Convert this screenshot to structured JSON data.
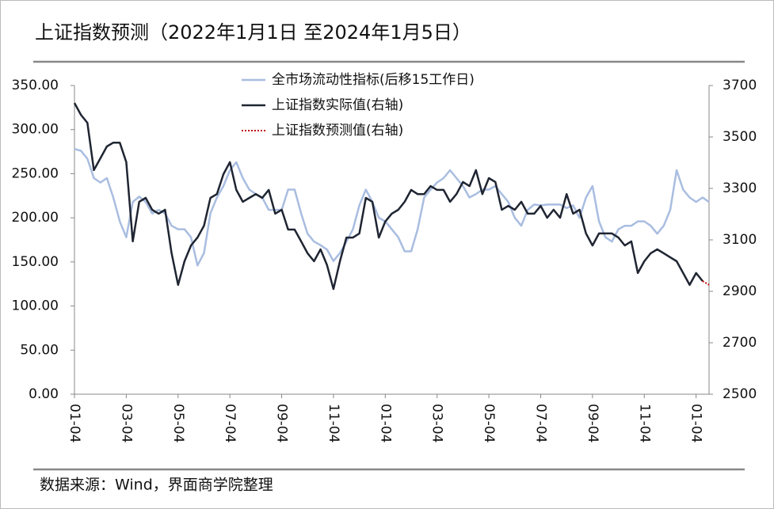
{
  "chart_data": {
    "type": "line",
    "title": "上证指数预测（2022年1月1日 至2024年1月5日）",
    "source": "数据来源：Wind，界面商学院整理",
    "categories": [
      "01-04",
      null,
      null,
      null,
      null,
      null,
      null,
      null,
      "03-04",
      null,
      null,
      null,
      null,
      null,
      null,
      null,
      "05-04",
      null,
      null,
      null,
      null,
      null,
      null,
      null,
      "07-04",
      null,
      null,
      null,
      null,
      null,
      null,
      null,
      "09-04",
      null,
      null,
      null,
      null,
      null,
      null,
      null,
      "11-04",
      null,
      null,
      null,
      null,
      null,
      null,
      null,
      "01-04",
      null,
      null,
      null,
      null,
      null,
      null,
      null,
      "03-04",
      null,
      null,
      null,
      null,
      null,
      null,
      null,
      "05-04",
      null,
      null,
      null,
      null,
      null,
      null,
      null,
      "07-04",
      null,
      null,
      null,
      null,
      null,
      null,
      null,
      "09-04",
      null,
      null,
      null,
      null,
      null,
      null,
      null,
      "11-04",
      null,
      null,
      null,
      null,
      null,
      null,
      null,
      "01-04",
      null,
      null
    ],
    "series": [
      {
        "name": "全市场流动性指标(后移15工作日)",
        "color": "#a9bde0",
        "axis": "y",
        "style": "solid",
        "values": [
          278,
          276,
          267,
          245,
          240,
          245,
          223,
          196,
          178,
          218,
          224,
          218,
          205,
          209,
          205,
          191,
          187,
          187,
          178,
          146,
          160,
          205,
          223,
          236,
          254,
          263,
          245,
          232,
          227,
          223,
          209,
          209,
          209,
          232,
          232,
          205,
          182,
          173,
          169,
          164,
          151,
          160,
          173,
          187,
          214,
          232,
          218,
          200,
          196,
          187,
          178,
          162,
          162,
          187,
          223,
          232,
          240,
          245,
          254,
          245,
          236,
          223,
          227,
          232,
          232,
          236,
          227,
          218,
          200,
          191,
          209,
          215,
          214,
          215,
          215,
          215,
          211,
          214,
          200,
          223,
          236,
          196,
          178,
          173,
          187,
          191,
          191,
          196,
          196,
          191,
          182,
          191,
          209,
          254,
          232,
          223,
          218,
          223,
          218
        ]
      },
      {
        "name": "上证指数实际值(右轴)",
        "color": "#1f2532",
        "axis": "y2",
        "style": "solid",
        "values": [
          3632,
          3586,
          3555,
          3371,
          3417,
          3463,
          3478,
          3478,
          3402,
          3094,
          3248,
          3263,
          3217,
          3202,
          3217,
          3048,
          2925,
          3017,
          3078,
          3109,
          3155,
          3263,
          3278,
          3355,
          3402,
          3294,
          3248,
          3263,
          3278,
          3263,
          3294,
          3202,
          3217,
          3140,
          3140,
          3094,
          3048,
          3017,
          3063,
          3002,
          2909,
          3017,
          3109,
          3109,
          3125,
          3263,
          3248,
          3109,
          3171,
          3202,
          3217,
          3248,
          3294,
          3278,
          3278,
          3309,
          3294,
          3294,
          3248,
          3278,
          3325,
          3309,
          3371,
          3278,
          3340,
          3325,
          3217,
          3232,
          3217,
          3248,
          3202,
          3202,
          3232,
          3186,
          3217,
          3186,
          3278,
          3202,
          3217,
          3125,
          3078,
          3125,
          3125,
          3125,
          3109,
          3078,
          3094,
          2971,
          3017,
          3048,
          3063,
          3048,
          3032,
          3017,
          2971,
          2925,
          2971,
          2940,
          null
        ]
      },
      {
        "name": "上证指数预测值(右轴)",
        "color": "#c00000",
        "axis": "y2",
        "style": "dotted",
        "values": [
          null,
          null,
          null,
          null,
          null,
          null,
          null,
          null,
          null,
          null,
          null,
          null,
          null,
          null,
          null,
          null,
          null,
          null,
          null,
          null,
          null,
          null,
          null,
          null,
          null,
          null,
          null,
          null,
          null,
          null,
          null,
          null,
          null,
          null,
          null,
          null,
          null,
          null,
          null,
          null,
          null,
          null,
          null,
          null,
          null,
          null,
          null,
          null,
          null,
          null,
          null,
          null,
          null,
          null,
          null,
          null,
          null,
          null,
          null,
          null,
          null,
          null,
          null,
          null,
          null,
          null,
          null,
          null,
          null,
          null,
          null,
          null,
          null,
          null,
          null,
          null,
          null,
          null,
          null,
          null,
          null,
          null,
          null,
          null,
          null,
          null,
          null,
          null,
          null,
          null,
          null,
          null,
          null,
          null,
          null,
          null,
          null,
          2940,
          2925
        ]
      }
    ],
    "ylim": [
      0,
      350
    ],
    "yticks": [
      {
        "value": 0,
        "label": "0.00"
      },
      {
        "value": 50,
        "label": "50.00"
      },
      {
        "value": 100,
        "label": "100.00"
      },
      {
        "value": 150,
        "label": "150.00"
      },
      {
        "value": 200,
        "label": "200.00"
      },
      {
        "value": 250,
        "label": "250.00"
      },
      {
        "value": 300,
        "label": "300.00"
      },
      {
        "value": 350,
        "label": "350.00"
      }
    ],
    "y2lim": [
      2500,
      3700
    ],
    "y2ticks": [
      2500,
      2700,
      2900,
      3100,
      3300,
      3500,
      3700
    ],
    "grid": false,
    "legend": "top"
  }
}
